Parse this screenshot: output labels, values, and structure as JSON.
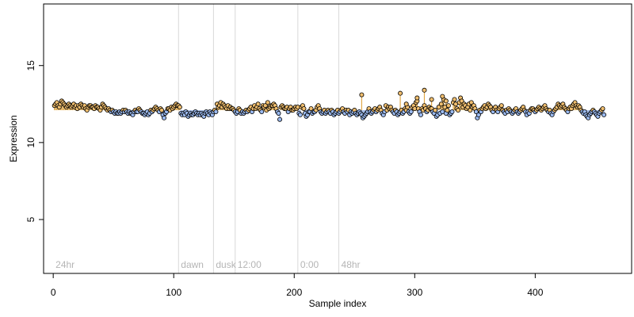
{
  "chart_data": {
    "type": "scatter",
    "title": "",
    "xlabel": "Sample index",
    "ylabel": "Expression",
    "xlim": [
      -8,
      480
    ],
    "ylim": [
      1.5,
      19
    ],
    "x_ticks": [
      0,
      100,
      200,
      300,
      400
    ],
    "y_ticks": [
      5,
      10,
      15
    ],
    "grid": false,
    "legend": "none",
    "baseline": 12.1,
    "region_markers": [
      {
        "label": "24hr",
        "x": 0
      },
      {
        "label": "dawn",
        "x": 104
      },
      {
        "label": "dusk",
        "x": 133
      },
      {
        "label": "12:00",
        "x": 151
      },
      {
        "label": "0:00",
        "x": 203
      },
      {
        "label": "48hr",
        "x": 237
      }
    ],
    "colors": {
      "above": "#f0be6e",
      "below": "#9bbaf0",
      "stem_above": "#e0a848",
      "stem_below": "#8aa8e0",
      "divider": "#d9d9d9",
      "label": "#b5b5b5"
    },
    "series": [
      {
        "x_start": 1,
        "x_step": 1,
        "values": [
          12.4,
          12.5,
          12.6,
          12.4,
          12.3,
          12.5,
          12.7,
          12.6,
          12.5,
          12.4,
          12.3,
          12.4,
          12.5,
          12.4,
          12.3,
          12.4,
          12.5,
          12.3,
          12.4,
          12.2,
          12.4,
          12.3,
          12.5,
          12.4,
          12.3,
          12.4,
          12.2,
          12.1,
          12.3,
          12.4,
          12.4,
          12.3,
          12.3,
          12.2,
          12.4,
          12.3,
          12.3,
          12.2,
          12.1,
          12.3,
          12.5,
          12.4,
          12.3,
          12.2,
          12.1,
          12.2,
          12.1,
          12.0,
          12.1,
          12.0,
          11.9,
          12.0,
          11.9,
          11.9,
          12.0,
          11.9,
          12.0,
          12.1,
          12.0,
          12.1,
          12.0,
          11.9,
          12.0,
          11.9,
          11.9,
          11.8,
          12.0,
          12.1,
          12.0,
          12.0,
          12.2,
          12.1,
          12.0,
          11.9,
          11.9,
          11.8,
          11.9,
          12.0,
          11.8,
          11.9,
          12.1,
          12.0,
          12.1,
          12.2,
          12.3,
          12.2,
          12.1,
          12.0,
          12.2,
          12.1,
          11.8,
          11.6,
          11.9,
          12.0,
          12.2,
          12.2,
          12.1,
          12.3,
          12.2,
          12.3,
          12.4,
          12.5,
          12.4,
          12.4,
          12.3,
          11.9,
          11.8,
          11.9,
          11.8,
          12.0,
          11.9,
          11.7,
          11.8,
          11.9,
          11.8,
          11.8,
          11.9,
          12.0,
          11.9,
          11.8,
          11.9,
          11.8,
          11.9,
          11.8,
          11.7,
          11.9,
          12.0,
          11.9,
          11.8,
          12.0,
          11.9,
          11.8,
          12.0,
          12.1,
          12.0,
          12.5,
          12.3,
          12.4,
          12.6,
          12.3,
          12.5,
          12.4,
          12.3,
          12.2,
          12.4,
          12.2,
          12.3,
          12.2,
          12.2,
          12.1,
          12.0,
          11.9,
          12.0,
          12.2,
          12.1,
          11.9,
          12.0,
          11.9,
          12.0,
          12.1,
          12.0,
          12.1,
          12.2,
          12.3,
          12.0,
          12.2,
          12.4,
          12.2,
          12.3,
          12.5,
          12.2,
          12.1,
          12.0,
          12.4,
          12.3,
          12.4,
          12.1,
          12.6,
          12.2,
          12.3,
          12.4,
          12.4,
          12.5,
          12.4,
          12.2,
          12.0,
          11.9,
          11.5,
          12.3,
          12.4,
          12.3,
          12.2,
          12.2,
          12.3,
          12.0,
          12.2,
          12.3,
          12.1,
          12.1,
          12.2,
          12.3,
          12.2,
          12.3,
          11.9,
          11.8,
          12.3,
          12.4,
          12.2,
          11.9,
          11.7,
          11.8,
          12.0,
          12.0,
          12.2,
          11.9,
          12.0,
          12.0,
          12.1,
          12.3,
          12.4,
          12.2,
          12.0,
          11.9,
          12.0,
          12.1,
          11.9,
          12.0,
          12.1,
          12.0,
          11.9,
          12.1,
          12.0,
          11.8,
          11.9,
          12.0,
          12.1,
          11.9,
          12.0,
          12.1,
          12.2,
          12.0,
          11.9,
          12.1,
          12.0,
          12.1,
          11.8,
          12.0,
          11.9,
          12.0,
          12.1,
          11.9,
          11.8,
          11.9,
          12.0,
          11.9,
          11.8,
          11.6,
          11.7,
          11.8,
          11.9,
          12.0,
          12.2,
          12.0,
          11.9,
          12.0,
          12.1,
          12.2,
          12.0,
          12.1,
          12.2,
          12.3,
          12.1,
          11.9,
          11.8,
          12.0,
          12.4,
          12.1,
          12.3,
          12.2,
          12.3,
          12.1,
          12.0,
          11.9,
          12.1,
          12.0,
          11.8,
          11.9,
          12.0,
          12.1,
          11.9,
          12.0,
          12.2,
          12.1,
          12.3,
          12.0,
          11.9,
          12.0,
          12.3,
          12.4,
          12.2,
          12.6,
          12.7,
          12.2,
          12.0,
          11.8,
          12.2,
          12.1,
          12.4,
          12.2,
          12.0,
          12.1,
          12.3,
          12.2,
          12.2,
          12.0,
          11.9,
          12.1,
          11.7,
          11.8,
          12.3,
          11.9,
          12.5,
          12.0,
          12.8,
          12.3,
          11.9,
          12.1,
          12.4,
          11.8,
          11.9,
          12.0,
          12.6,
          12.8,
          12.5,
          12.2,
          12.1,
          12.6,
          12.9,
          12.7,
          12.3,
          12.5,
          12.4,
          12.2,
          12.3,
          12.5,
          12.1,
          12.6,
          12.3,
          12.4,
          12.2,
          12.0,
          11.6,
          11.8,
          12.1,
          12.0,
          12.2,
          12.3,
          12.4,
          12.2,
          12.3,
          12.5,
          12.4,
          12.3,
          12.1,
          12.0,
          12.2,
          12.3,
          12.1,
          12.0,
          12.2,
          12.3,
          12.4,
          12.1,
          12.0,
          11.9,
          12.1,
          12.0,
          12.2,
          12.1,
          12.0,
          11.9,
          12.0,
          12.1,
          12.2,
          12.0,
          11.9,
          12.0,
          12.1,
          12.2,
          12.3,
          12.1,
          12.0,
          11.8,
          12.0,
          11.9,
          12.1,
          12.2,
          12.2,
          12.1,
          12.0,
          12.1,
          12.2,
          12.3,
          12.2,
          12.1,
          12.2,
          12.3,
          12.4,
          12.2,
          12.1,
          12.0,
          12.1,
          11.9,
          11.8,
          12.0,
          12.1,
          12.2,
          12.3,
          12.5,
          12.4,
          12.3,
          12.4,
          12.5,
          12.3,
          12.2,
          12.1,
          12.0,
          12.2,
          12.3,
          12.2,
          12.4,
          12.5,
          12.6,
          12.4,
          12.3,
          12.4,
          12.3,
          12.1,
          12.0,
          11.9,
          12.0,
          11.8,
          11.7,
          11.6,
          11.8,
          11.9,
          12.0,
          12.1,
          12.0,
          11.9,
          11.8,
          11.7,
          11.9,
          12.0,
          12.1,
          12.2,
          11.8
        ]
      }
    ],
    "outliers": [
      {
        "x": 256,
        "y": 13.1
      },
      {
        "x": 288,
        "y": 13.2
      },
      {
        "x": 293,
        "y": 12.5
      },
      {
        "x": 302,
        "y": 12.9
      },
      {
        "x": 308,
        "y": 13.4
      },
      {
        "x": 314,
        "y": 12.8
      },
      {
        "x": 323,
        "y": 13.0
      },
      {
        "x": 326,
        "y": 12.7
      }
    ]
  }
}
